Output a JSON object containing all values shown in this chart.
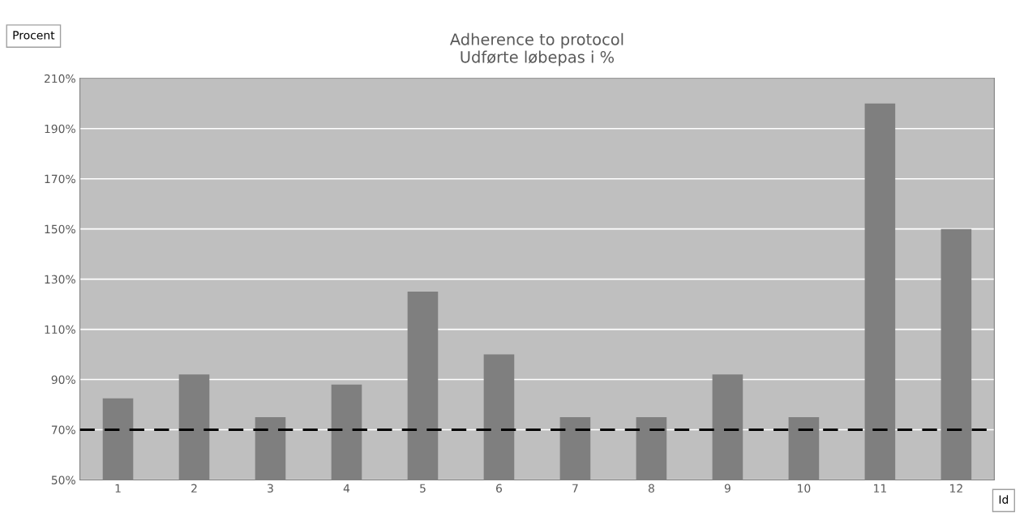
{
  "chart_data": {
    "type": "bar",
    "title": "Adherence to protocol",
    "subtitle": "Udførte løbepas i %",
    "ylabel": "Procent",
    "xlabel": "Id",
    "categories": [
      "1",
      "2",
      "3",
      "4",
      "5",
      "6",
      "7",
      "8",
      "9",
      "10",
      "11",
      "12"
    ],
    "values": [
      82.5,
      92,
      75,
      88,
      125,
      100,
      75,
      75,
      92,
      75,
      200,
      150
    ],
    "color": "#7f7f7f",
    "ylim": [
      50,
      210
    ],
    "yticks": [
      {
        "value": 50,
        "label": "50%"
      },
      {
        "value": 70,
        "label": "70%"
      },
      {
        "value": 90,
        "label": "90%"
      },
      {
        "value": 110,
        "label": "110%"
      },
      {
        "value": 130,
        "label": "130%"
      },
      {
        "value": 150,
        "label": "150%"
      },
      {
        "value": 170,
        "label": "170%"
      },
      {
        "value": 190,
        "label": "190%"
      },
      {
        "value": 210,
        "label": "210%"
      }
    ],
    "grid": "y",
    "ref_lines": [
      {
        "axis": "y",
        "value": 70,
        "color": "#000000",
        "line_style": "dashed"
      }
    ]
  }
}
